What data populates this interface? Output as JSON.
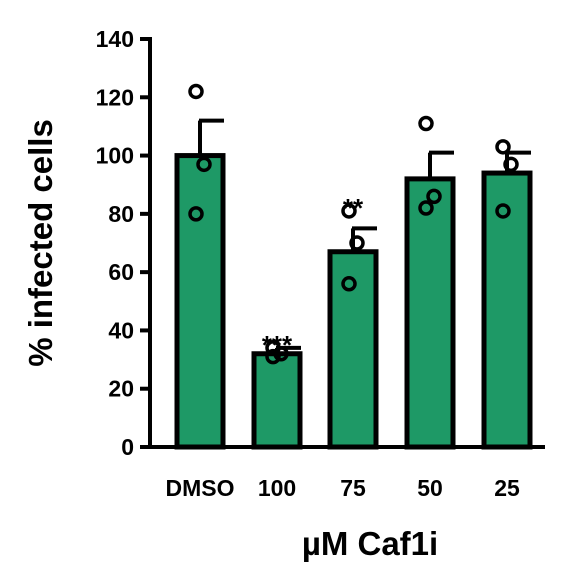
{
  "chart_data": {
    "type": "bar",
    "title": "",
    "xlabel": "µM Caf1i",
    "ylabel": "% infected cells",
    "ylim": [
      0,
      140
    ],
    "yticks": [
      0,
      20,
      40,
      60,
      80,
      100,
      120,
      140
    ],
    "categories": [
      "DMSO",
      "100",
      "75",
      "50",
      "25"
    ],
    "values": [
      100,
      32,
      67,
      92,
      94
    ],
    "error_upper": [
      112,
      34,
      75,
      101,
      101
    ],
    "points": [
      [
        122,
        97,
        80
      ],
      [
        34,
        32,
        31
      ],
      [
        81,
        70,
        56
      ],
      [
        111,
        86,
        82
      ],
      [
        103,
        97,
        81
      ]
    ],
    "significance": [
      "",
      "***",
      "**",
      "",
      ""
    ],
    "bar_color": "#1e9966",
    "grid": false,
    "legend": "none"
  }
}
